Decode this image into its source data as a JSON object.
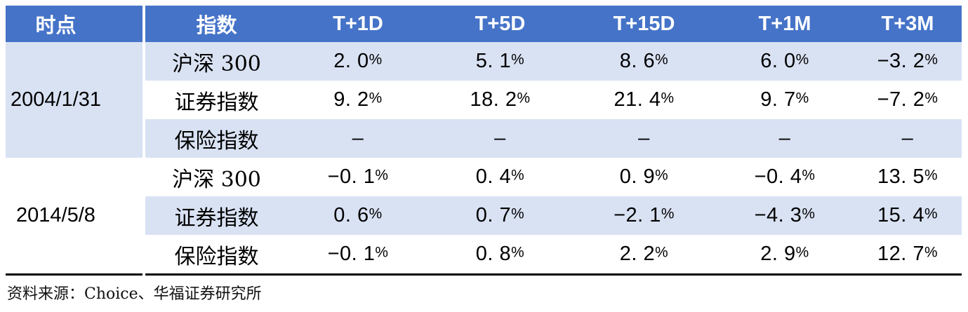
{
  "table": {
    "header": {
      "cells": [
        "时点",
        "指数",
        "T+1D",
        "T+5D",
        "T+15D",
        "T+1M",
        "T+3M"
      ]
    },
    "groups": [
      {
        "date": "2004/1/31",
        "rows": [
          {
            "name": "沪深 300",
            "values": [
              "2. 0%",
              "5. 1%",
              "8. 6%",
              "6. 0%",
              "−3. 2%"
            ]
          },
          {
            "name": "证券指数",
            "values": [
              "9. 2%",
              "18. 2%",
              "21. 4%",
              "9. 7%",
              "−7. 2%"
            ]
          },
          {
            "name": "保险指数",
            "values": [
              "–",
              "–",
              "–",
              "–",
              "–"
            ]
          }
        ]
      },
      {
        "date": "2014/5/8",
        "rows": [
          {
            "name": "沪深 300",
            "values": [
              "−0. 1%",
              "0. 4%",
              "0. 9%",
              "−0. 4%",
              "13. 5%"
            ]
          },
          {
            "name": "证券指数",
            "values": [
              "0. 6%",
              "0. 7%",
              "−2. 1%",
              "−4. 3%",
              "15. 4%"
            ]
          },
          {
            "name": "保险指数",
            "values": [
              "−0. 1%",
              "0. 8%",
              "2. 2%",
              "2. 9%",
              "12. 7%"
            ]
          }
        ]
      }
    ]
  },
  "footer": {
    "source": "资料来源：Choice、华福证券研究所"
  },
  "colors": {
    "header_bg": "#4573C8",
    "band_bg": "#D9E2F3",
    "bottom_rule": "#000000",
    "header_text": "#FFFFFF"
  }
}
